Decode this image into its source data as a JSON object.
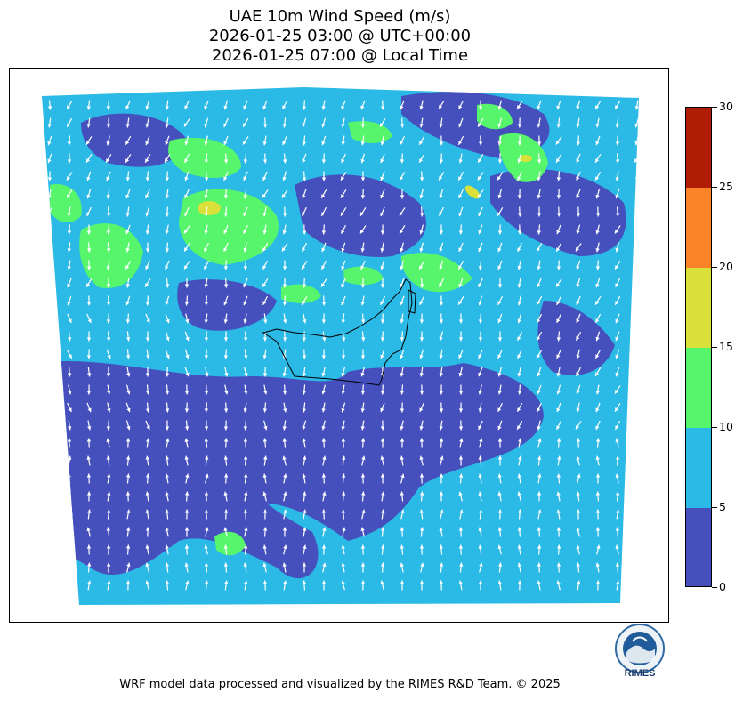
{
  "title": {
    "line1": "UAE 10m Wind Speed (m/s)",
    "line2": "2026-01-25 03:00 @ UTC+00:00",
    "line3": "2026-01-25 07:00 @ Local Time"
  },
  "chart_data": {
    "type": "heatmap",
    "title": "UAE 10m Wind Speed (m/s)",
    "variable": "10m wind speed",
    "unit": "m/s",
    "colorbar": {
      "ticks": [
        "0",
        "5",
        "10",
        "15",
        "20",
        "25",
        "30"
      ],
      "levels": [
        0,
        5,
        10,
        15,
        20,
        25,
        30
      ],
      "colors": [
        "#4650bd",
        "#2bb9e6",
        "#57f56b",
        "#d9e03a",
        "#fc8428",
        "#b01d06"
      ]
    },
    "overlay": "wind vector arrows",
    "region": "UAE"
  },
  "logo": {
    "text": "RIMES"
  },
  "footer": {
    "text": "WRF model data processed and visualized by the RIMES R&D Team. © 2025"
  }
}
